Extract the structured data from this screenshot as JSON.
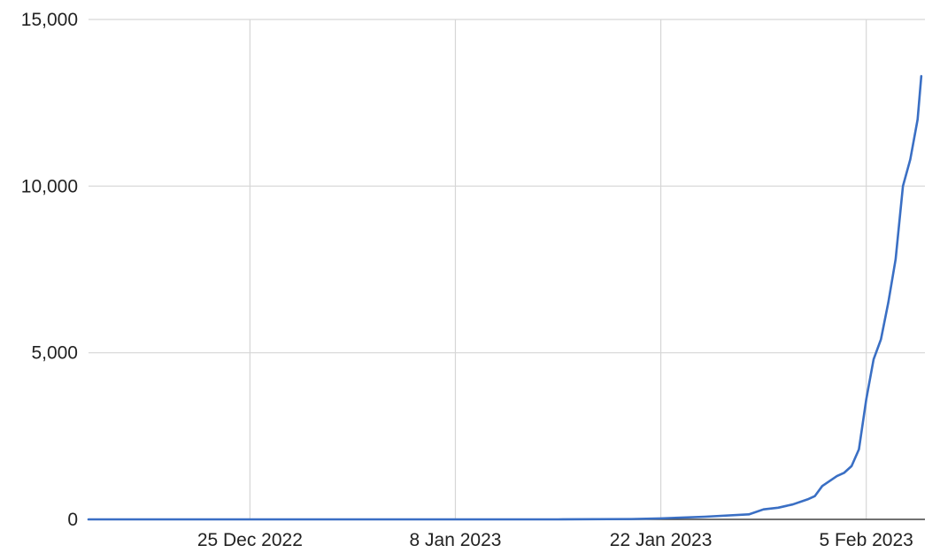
{
  "chart_data": {
    "type": "line",
    "title": "",
    "xlabel": "",
    "ylabel": "",
    "x_axis_type": "date",
    "xlim": [
      "2022-12-14",
      "2023-02-09"
    ],
    "ylim": [
      0,
      15000
    ],
    "grid": true,
    "legend": "none",
    "y_ticks": [
      {
        "value": 0,
        "label": "0"
      },
      {
        "value": 5000,
        "label": "5,000"
      },
      {
        "value": 10000,
        "label": "10,000"
      },
      {
        "value": 15000,
        "label": "15,000"
      }
    ],
    "x_ticks": [
      {
        "value": "2022-12-25",
        "label": "25 Dec 2022"
      },
      {
        "value": "2023-01-08",
        "label": "8 Jan 2023"
      },
      {
        "value": "2023-01-22",
        "label": "22 Jan 2023"
      },
      {
        "value": "2023-02-05",
        "label": "5 Feb 2023"
      }
    ],
    "series": [
      {
        "color": "#3a6fc4",
        "x": [
          "2022-12-14",
          "2022-12-20",
          "2022-12-25",
          "2023-01-01",
          "2023-01-08",
          "2023-01-15",
          "2023-01-20",
          "2023-01-22",
          "2023-01-25",
          "2023-01-28",
          "2023-01-29",
          "2023-01-30",
          "2023-01-31",
          "2023-02-01",
          "2023-02-01T12:00",
          "2023-02-02",
          "2023-02-02T12:00",
          "2023-02-03",
          "2023-02-03T12:00",
          "2023-02-04",
          "2023-02-04T12:00",
          "2023-02-05",
          "2023-02-05T12:00",
          "2023-02-06",
          "2023-02-06T12:00",
          "2023-02-07",
          "2023-02-07T12:00",
          "2023-02-08",
          "2023-02-08T12:00",
          "2023-02-08T18:00"
        ],
        "values": [
          0,
          0,
          0,
          0,
          0,
          0,
          10,
          30,
          80,
          150,
          300,
          350,
          450,
          600,
          700,
          1000,
          1150,
          1300,
          1400,
          1600,
          2100,
          3600,
          4800,
          5400,
          6500,
          7800,
          10000,
          10800,
          12000,
          13300
        ]
      }
    ]
  }
}
